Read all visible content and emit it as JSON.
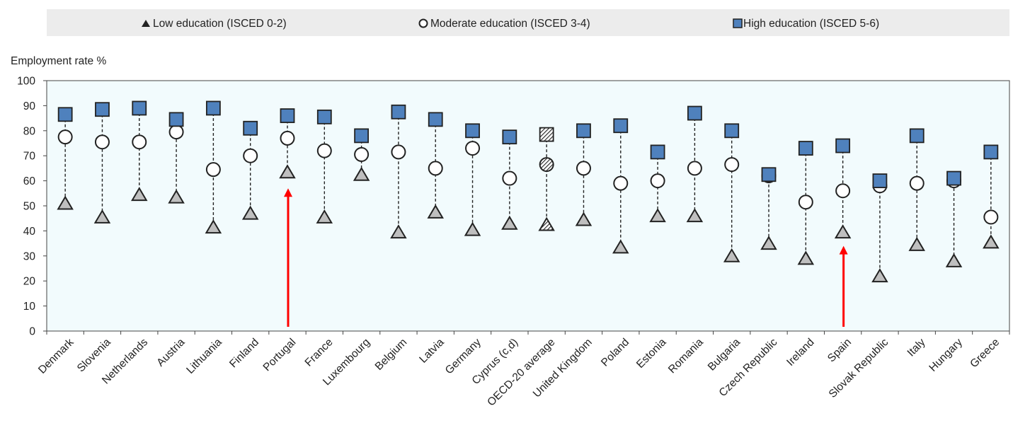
{
  "chart_data": {
    "type": "scatter",
    "ylabel": "Employment rate %",
    "ylim": [
      0,
      100
    ],
    "yticks": [
      0,
      10,
      20,
      30,
      40,
      50,
      60,
      70,
      80,
      90,
      100
    ],
    "categories": [
      "Denmark",
      "Slovenia",
      "Netherlands",
      "Austria",
      "Lithuania",
      "Finland",
      "Portugal",
      "France",
      "Luxembourg",
      "Belgium",
      "Latvia",
      "Germany",
      "Cyprus (c,d)",
      "OECD-20 average",
      "United Kingdom",
      "Poland",
      "Estonia",
      "Romania",
      "Bulgaria",
      "Czech Republic",
      "Ireland",
      "Spain",
      "Slovak Republic",
      "Italy",
      "Hungary",
      "Greece"
    ],
    "series": [
      {
        "name": "Low education (ISCED 0-2)",
        "marker": "triangle",
        "color": "#bfbfbf",
        "values": [
          51,
          45.5,
          54.5,
          53.5,
          41.5,
          47,
          63.5,
          45.5,
          62.5,
          39.5,
          47.5,
          40.5,
          43,
          42.5,
          44.5,
          33.5,
          46,
          46,
          30,
          35,
          29,
          39.5,
          22,
          34.5,
          28,
          35.5
        ]
      },
      {
        "name": "Moderate education (ISCED 3-4)",
        "marker": "circle",
        "color": "#ffffff",
        "values": [
          77.5,
          75.5,
          75.5,
          79.5,
          64.5,
          70,
          77,
          72,
          70.5,
          71.5,
          65,
          73,
          61,
          66.5,
          65,
          59,
          60,
          65,
          66.5,
          62,
          51.5,
          56,
          58,
          59,
          60,
          45.5
        ]
      },
      {
        "name": "High education (ISCED 5-6)",
        "marker": "square",
        "color": "#4f81bd",
        "values": [
          86.5,
          88.5,
          89,
          84.5,
          89,
          81,
          86,
          85.5,
          78,
          87.5,
          84.5,
          80,
          77.5,
          78.5,
          80,
          82,
          71.5,
          87,
          80,
          62.5,
          73,
          74,
          60,
          78,
          61,
          71.5
        ]
      }
    ],
    "grid": false,
    "legend_position": "top",
    "highlight_category": "OECD-20 average",
    "arrows": [
      {
        "category": "Portugal",
        "color": "#ff0000",
        "to_value": 57
      },
      {
        "category": "Spain",
        "color": "#ff0000",
        "to_value": 34
      }
    ],
    "plot_background": "#f2fbfd"
  }
}
